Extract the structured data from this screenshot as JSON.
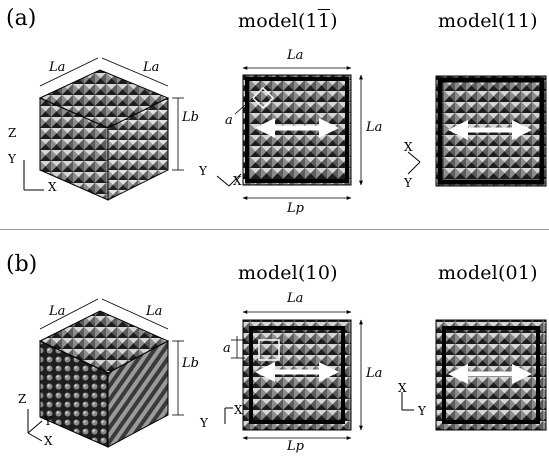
{
  "panels": [
    {
      "label": "(a)",
      "cube": {
        "dim_top_left": "La",
        "dim_top_right": "La",
        "dim_side": "Lb",
        "axes": {
          "vertical": "Z",
          "y": "Y",
          "x": "X"
        }
      },
      "models": [
        {
          "title_main": "model(1",
          "title_overbar": "1",
          "title_end": ")",
          "dim_top": "La",
          "dim_side": "La",
          "dim_bottom": "Lp",
          "cell_label": "a",
          "orient": {
            "a": "Y",
            "b": "X"
          }
        },
        {
          "title_main": "model(11)",
          "orient": {
            "a": "X",
            "b": "Y"
          }
        }
      ]
    },
    {
      "label": "(b)",
      "cube": {
        "dim_top_left": "La",
        "dim_top_right": "La",
        "dim_side": "Lb",
        "axes": {
          "vertical": "Z",
          "y": "Y",
          "x": "X"
        }
      },
      "models": [
        {
          "title_main": "model(10)",
          "dim_top": "La",
          "dim_side": "La",
          "dim_bottom": "Lp",
          "cell_label": "a",
          "orient": {
            "a": "Y",
            "b": "X"
          }
        },
        {
          "title_main": "model(01)",
          "orient": {
            "a": "X",
            "b": "Y"
          }
        }
      ]
    }
  ]
}
